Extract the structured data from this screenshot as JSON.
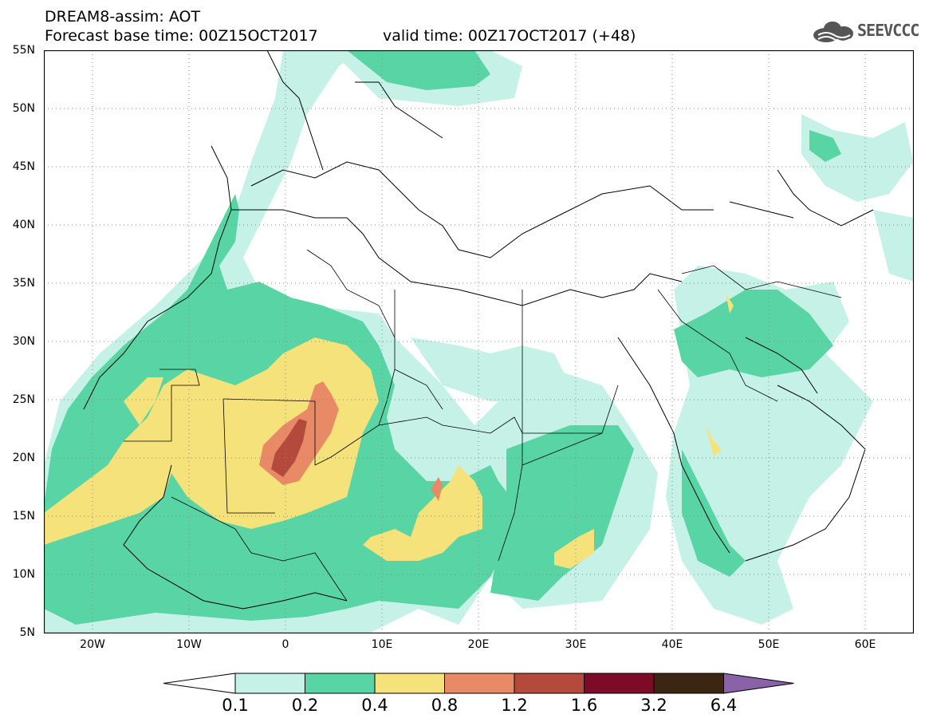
{
  "header": {
    "title_line1": "DREAM8-assim: AOT",
    "title_line2": "Forecast base time: 00Z15OCT2017",
    "valid_time": "valid time: 00Z17OCT2017 (+48)"
  },
  "logo": {
    "text": "SEEVCCC",
    "icon": "cloud-icon"
  },
  "map": {
    "projection": "lat-lon",
    "lon_range": [
      -25,
      65
    ],
    "lat_range": [
      5,
      55
    ],
    "lat_labels": [
      "55N",
      "50N",
      "45N",
      "40N",
      "35N",
      "30N",
      "25N",
      "20N",
      "15N",
      "10N",
      "5N"
    ],
    "lon_labels": [
      "20W",
      "10W",
      "0",
      "10E",
      "20E",
      "30E",
      "40E",
      "50E",
      "60E"
    ],
    "grid": "dotted"
  },
  "legend": {
    "labels": [
      "0.1",
      "0.2",
      "0.4",
      "0.8",
      "1.2",
      "1.6",
      "3.2",
      "6.4"
    ],
    "colors": [
      "#ffffff",
      "#c5f1e6",
      "#59d4a4",
      "#f5e27a",
      "#e88a66",
      "#b34a3c",
      "#7d0a26",
      "#3b2614",
      "#8a62a8"
    ]
  }
}
